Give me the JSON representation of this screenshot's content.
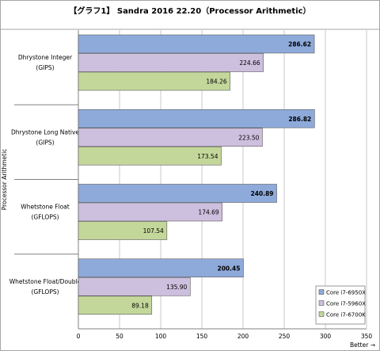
{
  "chart_data": {
    "type": "bar",
    "orientation": "horizontal",
    "title": "【グラフ1】 Sandra 2016  22.20（Processor Arithmetic）",
    "ylabel": "Processor Arithmetic",
    "xlabel": "Better →",
    "categories": [
      [
        "Dhrystone Integer",
        "(GIPS)"
      ],
      [
        "Dhrystone Long Native",
        "(GIPS)"
      ],
      [
        "Whetstone Float",
        "(GFLOPS)"
      ],
      [
        "Whetstone Float/Double",
        "(GFLOPS)"
      ]
    ],
    "series": [
      {
        "name": "Core i7-6950X",
        "color": "#8eaadb",
        "values": [
          286.62,
          286.82,
          240.89,
          200.45
        ],
        "labels": [
          "286.62",
          "286.82",
          "240.89",
          "200.45"
        ]
      },
      {
        "name": "Core i7-5960X",
        "color": "#cdbfde",
        "values": [
          224.66,
          223.5,
          174.69,
          135.9
        ],
        "labels": [
          "224.66",
          "223.50",
          "174.69",
          "135.90"
        ]
      },
      {
        "name": "Core i7-6700K",
        "color": "#c4d79b",
        "values": [
          184.26,
          173.54,
          107.54,
          89.18
        ],
        "labels": [
          "184.26",
          "173.54",
          "107.54",
          "89.18"
        ]
      }
    ],
    "xlim": [
      0,
      350
    ],
    "xticks": [
      0,
      50,
      100,
      150,
      200,
      250,
      300,
      350
    ],
    "grid": true,
    "legend_position": "bottom-right"
  }
}
